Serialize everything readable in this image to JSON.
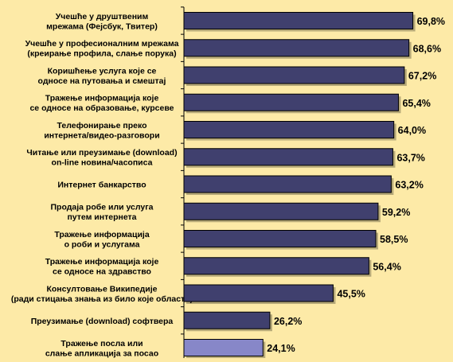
{
  "colors": {
    "background": "#fdeaa7",
    "bar": "#40406e",
    "bar_highlight": "#8787c8",
    "axis": "#000000",
    "text": "#000000"
  },
  "chart_data": {
    "type": "bar",
    "orientation": "horizontal",
    "title": "",
    "xlabel": "",
    "ylabel": "",
    "xlim": [
      0,
      75
    ],
    "grid": false,
    "legend": "none",
    "value_suffix": "%",
    "categories": [
      [
        "Учешће у друштвеним",
        "мрежама (Фејсбук, Твитер)"
      ],
      [
        "Учешће у професионалним мрежама",
        "(креирање профила, слање порука)"
      ],
      [
        "Коришћење услуга које се",
        "односе на путовања и смештај"
      ],
      [
        "Тражење информација које",
        "се односе на образовање, курсеве"
      ],
      [
        "Телефонирање преко",
        "интернета/видео-разговори"
      ],
      [
        "Читање или преузимање (download)",
        "on-line новина/часописа"
      ],
      [
        "Интернет банкарство"
      ],
      [
        "Продаја робе или услуга",
        "путем интернета"
      ],
      [
        "Тражење информација",
        "о роби и услугама"
      ],
      [
        "Тражење информација које",
        "се односе на здравство"
      ],
      [
        "Консултовање Википедије",
        "(ради стицања знања из било које области)"
      ],
      [
        "Преузимање (download) софтвера"
      ],
      [
        "Тражење посла или",
        "слање апликација за посао"
      ]
    ],
    "values": [
      69.8,
      68.6,
      67.2,
      65.4,
      64.0,
      63.7,
      63.2,
      59.2,
      58.5,
      56.4,
      45.5,
      26.2,
      24.1
    ],
    "value_labels": [
      "69,8%",
      "68,6%",
      "67,2%",
      "65,4%",
      "64,0%",
      "63,7%",
      "63,2%",
      "59,2%",
      "58,5%",
      "56,4%",
      "45,5%",
      "26,2%",
      "24,1%"
    ],
    "highlight_index": 12
  }
}
